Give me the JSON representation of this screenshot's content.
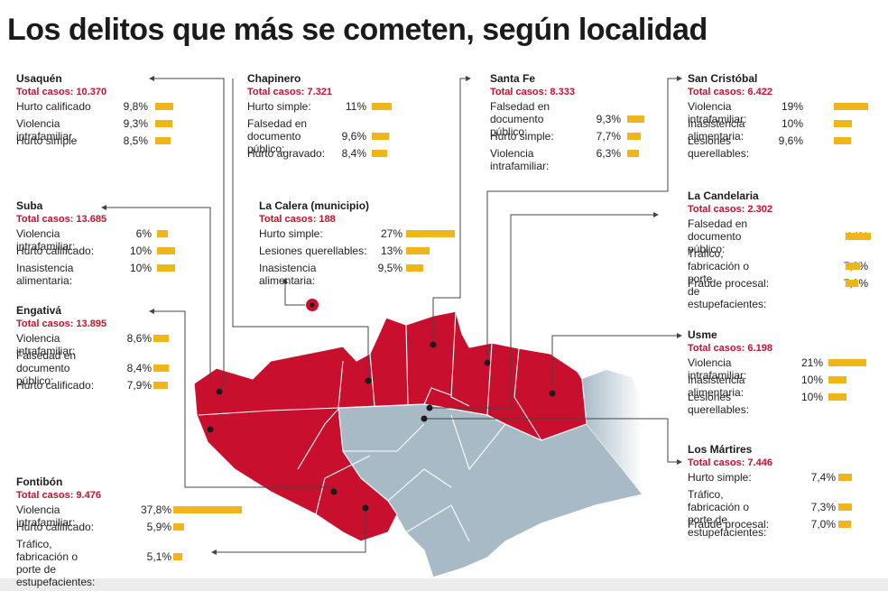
{
  "title": "Los delitos que más se cometen, según localidad",
  "colors": {
    "highlight": "#c8102e",
    "bar": "#f1b51c",
    "map_red": "#c8102e",
    "map_gray": "#a7bac6",
    "map_border": "#ffffff"
  },
  "chart_data": {
    "type": "bar",
    "title": "Los delitos que más se cometen, según localidad",
    "unit": "%",
    "localities": [
      {
        "name": "Usaquén",
        "total": "Total casos: 10.370",
        "crimes": [
          {
            "label": "Hurto calificado",
            "pct": "9,8%",
            "value": 9.8
          },
          {
            "label": "Violencia intrafamiliar",
            "pct": "9,3%",
            "value": 9.3
          },
          {
            "label": "Hurto simple",
            "pct": "8,5%",
            "value": 8.5
          }
        ]
      },
      {
        "name": "Chapinero",
        "total": "Total casos: 7.321",
        "crimes": [
          {
            "label": "Hurto simple:",
            "pct": "11%",
            "value": 11
          },
          {
            "label": "Falsedad en\ndocumento público:",
            "pct": "9,6%",
            "value": 9.6
          },
          {
            "label": "Hurto agravado:",
            "pct": "8,4%",
            "value": 8.4
          }
        ]
      },
      {
        "name": "Santa Fe",
        "total": "Total casos: 8.333",
        "crimes": [
          {
            "label": "Falsedad en\ndocumento público:",
            "pct": "9,3%",
            "value": 9.3
          },
          {
            "label": "Hurto simple:",
            "pct": "7,7%",
            "value": 7.7
          },
          {
            "label": "Violencia intrafamiliar:",
            "pct": "6,3%",
            "value": 6.3
          }
        ]
      },
      {
        "name": "San Cristóbal",
        "total": "Total casos: 6.422",
        "crimes": [
          {
            "label": "Violencia intrafamiliar:",
            "pct": "19%",
            "value": 19
          },
          {
            "label": "Inasistencia alimentaria:",
            "pct": "10%",
            "value": 10
          },
          {
            "label": "Lesiones querellables:",
            "pct": "9,6%",
            "value": 9.6
          }
        ]
      },
      {
        "name": "Suba",
        "total": "Total casos: 13.685",
        "crimes": [
          {
            "label": "Violencia intrafamiliar:",
            "pct": "6%",
            "value": 6
          },
          {
            "label": "Hurto calificado:",
            "pct": "10%",
            "value": 10
          },
          {
            "label": "Inasistencia alimentaria:",
            "pct": "10%",
            "value": 10
          }
        ]
      },
      {
        "name": "La Calera (municipio)",
        "total": "Total casos: 188",
        "crimes": [
          {
            "label": "Hurto simple:",
            "pct": "27%",
            "value": 27
          },
          {
            "label": "Lesiones querellables:",
            "pct": "13%",
            "value": 13
          },
          {
            "label": "Inasistencia alimentaria:",
            "pct": "9,5%",
            "value": 9.5
          }
        ]
      },
      {
        "name": "La Candelaria",
        "total": "Total casos: 2.302",
        "crimes": [
          {
            "label": "Falsedad en\ndocumento público:",
            "pct": "14%",
            "value": 14
          },
          {
            "label": "Tráfico, fabricación o porte\nde estupefacientes:",
            "pct": "7,8%",
            "value": 7.8
          },
          {
            "label": "Fraude procesal:",
            "pct": "7,2%",
            "value": 7.2
          }
        ]
      },
      {
        "name": "Engativá",
        "total": "Total casos: 13.895",
        "crimes": [
          {
            "label": "Violencia intrafamiliar:",
            "pct": "8,6%",
            "value": 8.6
          },
          {
            "label": "Falsedad en\ndocumento público:",
            "pct": "8,4%",
            "value": 8.4
          },
          {
            "label": "Hurto calificado:",
            "pct": "7,9%",
            "value": 7.9
          }
        ]
      },
      {
        "name": "Usme",
        "total": "Total casos: 6.198",
        "crimes": [
          {
            "label": "Violencia intrafamiliar:",
            "pct": "21%",
            "value": 21
          },
          {
            "label": "Inasistencia alimentaria:",
            "pct": "10%",
            "value": 10
          },
          {
            "label": "Lesiones querellables:",
            "pct": "10%",
            "value": 10
          }
        ]
      },
      {
        "name": "Los Mártires",
        "total": "Total casos: 7.446",
        "crimes": [
          {
            "label": "Hurto simple:",
            "pct": "7,4%",
            "value": 7.4
          },
          {
            "label": "Tráfico, fabricación o\nporte de estupefacientes:",
            "pct": "7,3%",
            "value": 7.3
          },
          {
            "label": "Fraude procesal:",
            "pct": "7,0%",
            "value": 7.0
          }
        ]
      },
      {
        "name": "Fontibón",
        "total": "Total casos: 9.476",
        "crimes": [
          {
            "label": "Violencia intrafamiliar:",
            "pct": "37,8%",
            "value": 37.8
          },
          {
            "label": "Hurto calificado:",
            "pct": "5,9%",
            "value": 5.9
          },
          {
            "label": "Tráfico, fabricación o\nporte de estupefacientes:",
            "pct": "5,1%",
            "value": 5.1
          }
        ]
      }
    ]
  }
}
